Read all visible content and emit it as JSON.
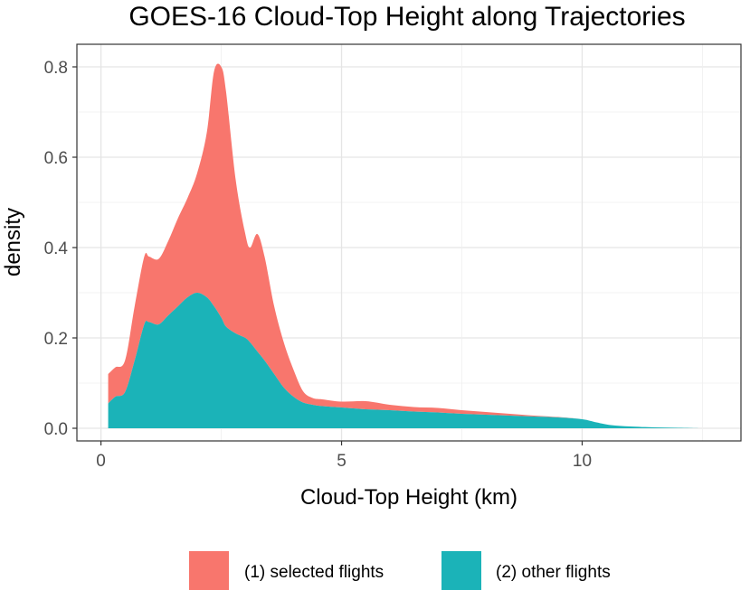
{
  "chart_data": {
    "type": "area",
    "stacked": true,
    "title": "GOES-16 Cloud-Top Height along Trajectories",
    "xlabel": "Cloud-Top Height (km)",
    "ylabel": "density",
    "xlim": [
      -0.5,
      13.3
    ],
    "ylim": [
      -0.028,
      0.85
    ],
    "x_ticks": [
      0,
      5,
      10
    ],
    "x_tick_labels": [
      "0",
      "5",
      "10"
    ],
    "y_ticks": [
      0.0,
      0.2,
      0.4,
      0.6,
      0.8
    ],
    "y_tick_labels": [
      "0.0",
      "0.2",
      "0.4",
      "0.6",
      "0.8"
    ],
    "grid": true,
    "legend_position": "bottom",
    "series": [
      {
        "name": "(1) selected flights",
        "color": "#F8766D",
        "x": [
          0.15,
          0.3,
          0.5,
          0.7,
          0.9,
          1.0,
          1.2,
          1.4,
          1.6,
          1.8,
          2.0,
          2.2,
          2.35,
          2.5,
          2.6,
          2.8,
          3.0,
          3.1,
          3.25,
          3.4,
          3.6,
          3.8,
          4.0,
          4.2,
          4.4,
          4.6,
          5.0,
          5.5,
          6.0,
          6.5,
          7.0,
          7.5,
          8.0,
          8.5,
          9.0,
          9.5,
          10.0,
          10.3,
          10.6,
          11.0,
          11.5,
          12.0,
          12.5
        ],
        "values": [
          0.065,
          0.065,
          0.07,
          0.12,
          0.15,
          0.145,
          0.145,
          0.165,
          0.195,
          0.22,
          0.265,
          0.365,
          0.52,
          0.555,
          0.52,
          0.34,
          0.23,
          0.21,
          0.26,
          0.23,
          0.15,
          0.1,
          0.06,
          0.025,
          0.015,
          0.015,
          0.013,
          0.018,
          0.012,
          0.01,
          0.01,
          0.008,
          0.006,
          0.004,
          0.002,
          0.001,
          0.0,
          0.0,
          0.0,
          0.0,
          0.0,
          0.0,
          0.0
        ]
      },
      {
        "name": "(2) other flights",
        "color": "#1BB3B8",
        "x": [
          0.15,
          0.3,
          0.5,
          0.7,
          0.9,
          1.0,
          1.2,
          1.4,
          1.6,
          1.8,
          2.0,
          2.2,
          2.35,
          2.5,
          2.6,
          2.8,
          3.0,
          3.1,
          3.25,
          3.4,
          3.6,
          3.8,
          4.0,
          4.2,
          4.4,
          4.6,
          5.0,
          5.5,
          6.0,
          6.5,
          7.0,
          7.5,
          8.0,
          8.5,
          9.0,
          9.5,
          10.0,
          10.3,
          10.6,
          11.0,
          11.5,
          12.0,
          12.5
        ],
        "values": [
          0.055,
          0.07,
          0.08,
          0.15,
          0.23,
          0.235,
          0.23,
          0.25,
          0.27,
          0.29,
          0.3,
          0.29,
          0.27,
          0.245,
          0.225,
          0.21,
          0.2,
          0.19,
          0.17,
          0.15,
          0.12,
          0.09,
          0.07,
          0.057,
          0.052,
          0.049,
          0.046,
          0.042,
          0.04,
          0.037,
          0.035,
          0.032,
          0.03,
          0.028,
          0.026,
          0.024,
          0.02,
          0.013,
          0.007,
          0.004,
          0.002,
          0.001,
          0.0
        ]
      }
    ]
  }
}
